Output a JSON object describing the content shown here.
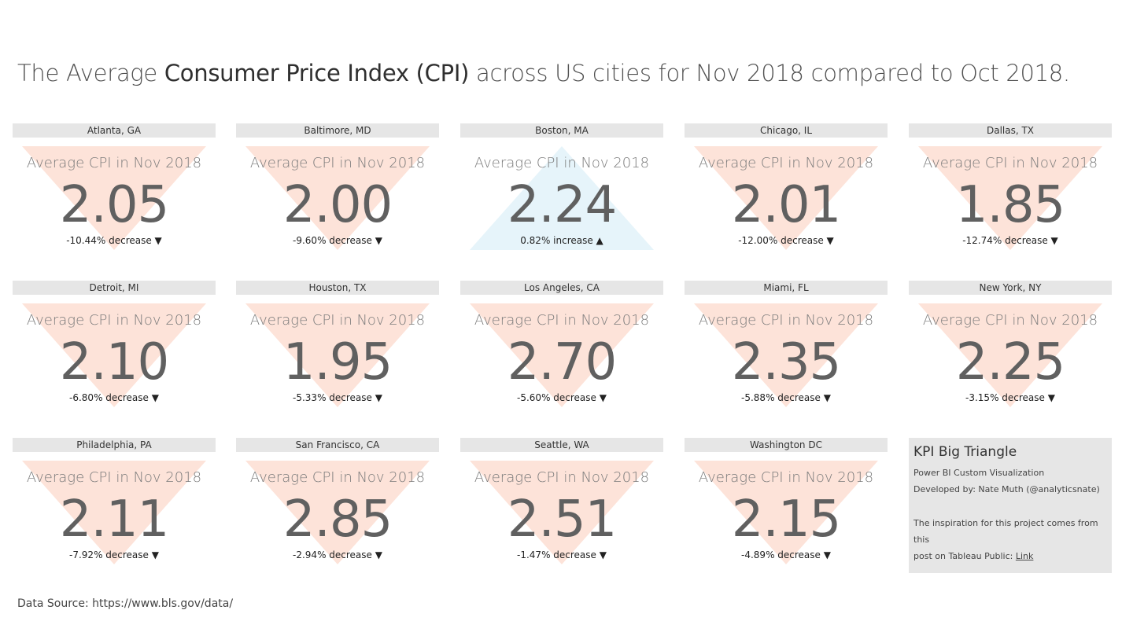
{
  "header": {
    "title_prefix": "The Average ",
    "title_bold": "Consumer Price Index (CPI)",
    "title_suffix": " across US cities for Nov 2018 compared to Oct 2018."
  },
  "kpi_label": "Average CPI in Nov 2018",
  "colors": {
    "decrease": "#fde3d9",
    "increase": "#e6f4fa",
    "header_bg": "#e6e6e6"
  },
  "cards": [
    {
      "city": "Atlanta, GA",
      "label": "Average CPI in Nov 2018",
      "value": "2.05",
      "change": "-10.44% decrease ▼",
      "direction": "down"
    },
    {
      "city": "Baltimore, MD",
      "label": "Average CPI in Nov 2018",
      "value": "2.00",
      "change": "-9.60% decrease ▼",
      "direction": "down"
    },
    {
      "city": "Boston, MA",
      "label": "Average CPI in Nov 2018",
      "value": "2.24",
      "change": "0.82% increase ▲",
      "direction": "up"
    },
    {
      "city": "Chicago, IL",
      "label": "Average CPI in Nov 2018",
      "value": "2.01",
      "change": "-12.00% decrease ▼",
      "direction": "down"
    },
    {
      "city": "Dallas, TX",
      "label": "Average CPI in Nov 2018",
      "value": "1.85",
      "change": "-12.74% decrease ▼",
      "direction": "down"
    },
    {
      "city": "Detroit, MI",
      "label": "Average CPI in Nov 2018",
      "value": "2.10",
      "change": "-6.80% decrease ▼",
      "direction": "down"
    },
    {
      "city": "Houston, TX",
      "label": "Average CPI in Nov 2018",
      "value": "1.95",
      "change": "-5.33% decrease ▼",
      "direction": "down"
    },
    {
      "city": "Los Angeles, CA",
      "label": "Average CPI in Nov 2018",
      "value": "2.70",
      "change": "-5.60% decrease ▼",
      "direction": "down"
    },
    {
      "city": "Miami, FL",
      "label": "Average CPI in Nov 2018",
      "value": "2.35",
      "change": "-5.88% decrease ▼",
      "direction": "down"
    },
    {
      "city": "New York, NY",
      "label": "Average CPI in Nov 2018",
      "value": "2.25",
      "change": "-3.15% decrease ▼",
      "direction": "down"
    },
    {
      "city": "Philadelphia, PA",
      "label": "Average CPI in Nov 2018",
      "value": "2.11",
      "change": "-7.92% decrease ▼",
      "direction": "down"
    },
    {
      "city": "San Francisco, CA",
      "label": "Average CPI in Nov 2018",
      "value": "2.85",
      "change": "-2.94% decrease ▼",
      "direction": "down"
    },
    {
      "city": "Seattle, WA",
      "label": "Average CPI in Nov 2018",
      "value": "2.51",
      "change": "-1.47% decrease ▼",
      "direction": "down"
    },
    {
      "city": "Washington DC",
      "label": "Average CPI in Nov 2018",
      "value": "2.15",
      "change": "-4.89% decrease ▼",
      "direction": "down"
    }
  ],
  "info": {
    "title": "KPI Big Triangle",
    "line1": "Power BI Custom Visualization",
    "line2": "Developed by: Nate Muth (@analyticsnate)",
    "line3": "The inspiration for this project comes from this",
    "line4_prefix": "post on Tableau Public: ",
    "link_label": "Link"
  },
  "footer": {
    "source": "Data Source: https://www.bls.gov/data/"
  }
}
